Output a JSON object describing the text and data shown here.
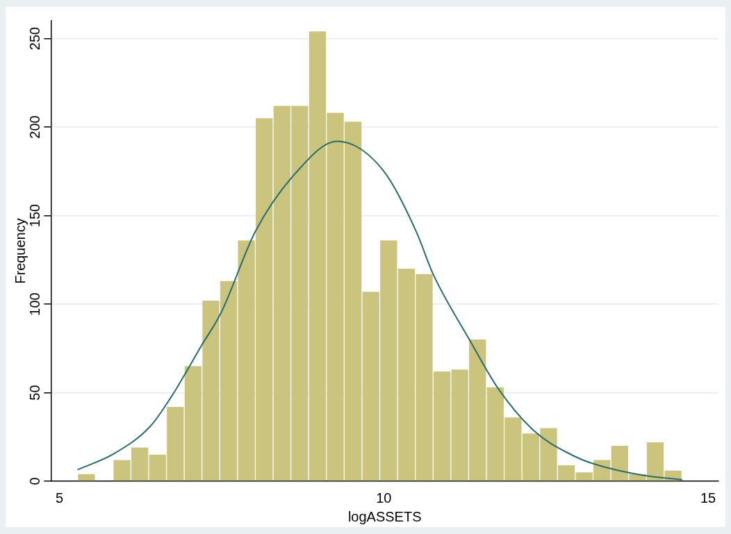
{
  "chart_data": {
    "type": "histogram",
    "xlabel": "logASSETS",
    "ylabel": "Frequency",
    "bins": [
      5.28,
      5.554,
      5.828,
      6.102,
      6.376,
      6.65,
      6.924,
      7.198,
      7.472,
      7.746,
      8.02,
      8.294,
      8.568,
      8.842,
      9.116,
      9.39,
      9.664,
      9.938,
      10.212,
      10.486,
      10.76,
      11.034,
      11.308,
      11.582,
      11.856,
      12.13,
      12.404,
      12.678,
      12.952,
      13.226,
      13.5,
      13.774,
      14.048,
      14.322,
      14.596
    ],
    "values": [
      4,
      0,
      12,
      19,
      15,
      42,
      65,
      102,
      113,
      136,
      205,
      212,
      212,
      254,
      208,
      203,
      107,
      136,
      120,
      117,
      62,
      63,
      80,
      53,
      36,
      27,
      30,
      9,
      5,
      12,
      20,
      4,
      22,
      6
    ],
    "color": "#cbc47f",
    "series": [
      {
        "type": "line",
        "color": "#2a6b6b",
        "x": [
          5.28,
          5.84,
          6.4,
          6.73,
          6.96,
          7.18,
          7.49,
          8.02,
          8.64,
          9.28,
          9.98,
          10.5,
          10.76,
          11.32,
          11.77,
          12.33,
          12.89,
          13.22,
          14.0,
          14.6
        ],
        "values": [
          6.5,
          15.5,
          31,
          48,
          62,
          76,
          95,
          141,
          174,
          192,
          176,
          141,
          117,
          80,
          52,
          28,
          15,
          10,
          3.3,
          0.8
        ]
      }
    ],
    "xlim": [
      4.87,
      15.16
    ],
    "xticks": [
      5,
      10,
      15
    ],
    "ylim": [
      0,
      260
    ],
    "yticks": [
      0,
      50,
      100,
      150,
      200,
      250
    ],
    "grid": "y",
    "legend": false,
    "marker": "none"
  }
}
